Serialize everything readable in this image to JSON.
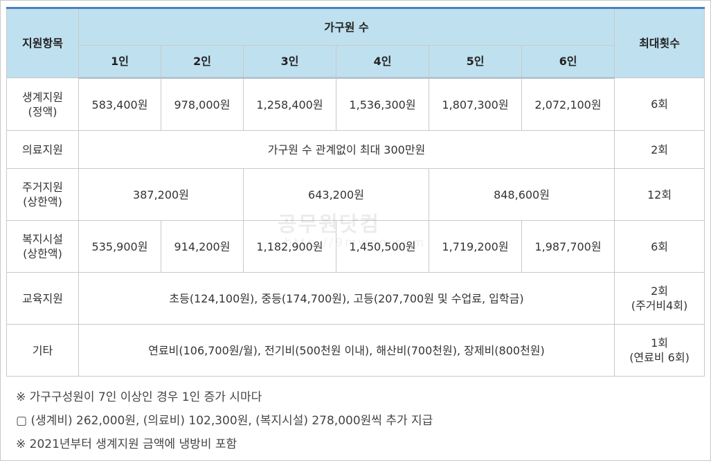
{
  "table": {
    "header": {
      "item": "지원항목",
      "group": "가구원 수",
      "max": "최대횟수",
      "sizes": [
        "1인",
        "2인",
        "3인",
        "4인",
        "5인",
        "6인"
      ]
    },
    "rows": {
      "living": {
        "label_line1": "생계지원",
        "label_line2": "(정액)",
        "values": [
          "583,400원",
          "978,000원",
          "1,258,400원",
          "1,536,300원",
          "1,807,300원",
          "2,072,100원"
        ],
        "max": "6회"
      },
      "medical": {
        "label": "의료지원",
        "value": "가구원 수 관계없이 최대 300만원",
        "max": "2회"
      },
      "housing": {
        "label_line1": "주거지원",
        "label_line2": "(상한액)",
        "values": [
          "387,200원",
          "643,200원",
          "848,600원"
        ],
        "max": "12회"
      },
      "welfare": {
        "label_line1": "복지시설",
        "label_line2": "(상한액)",
        "values": [
          "535,900원",
          "914,200원",
          "1,182,900원",
          "1,450,500원",
          "1,719,200원",
          "1,987,700원"
        ],
        "max": "6회"
      },
      "education": {
        "label": "교육지원",
        "value": "초등(124,100원), 중등(174,700원), 고등(207,700원 및 수업료, 입학금)",
        "max_line1": "2회",
        "max_line2": "(주거비4회)"
      },
      "etc": {
        "label": "기타",
        "value": "연료비(106,700원/월), 전기비(500천원 이내), 해산비(700천원), 장제비(800천원)",
        "max_line1": "1회",
        "max_line2": "(연료비 6회)"
      }
    }
  },
  "watermark": {
    "title": "공무원닷컴",
    "url": "http://9mwon.com"
  },
  "notes": [
    "※ 가구구성원이 7인 이상인 경우 1인 증가 시마다",
    "▢ (생계비) 262,000원, (의료비) 102,300원, (복지시설) 278,000원씩 추가 지급",
    "※ 2021년부터 생계지원 금액에 냉방비 포함"
  ]
}
